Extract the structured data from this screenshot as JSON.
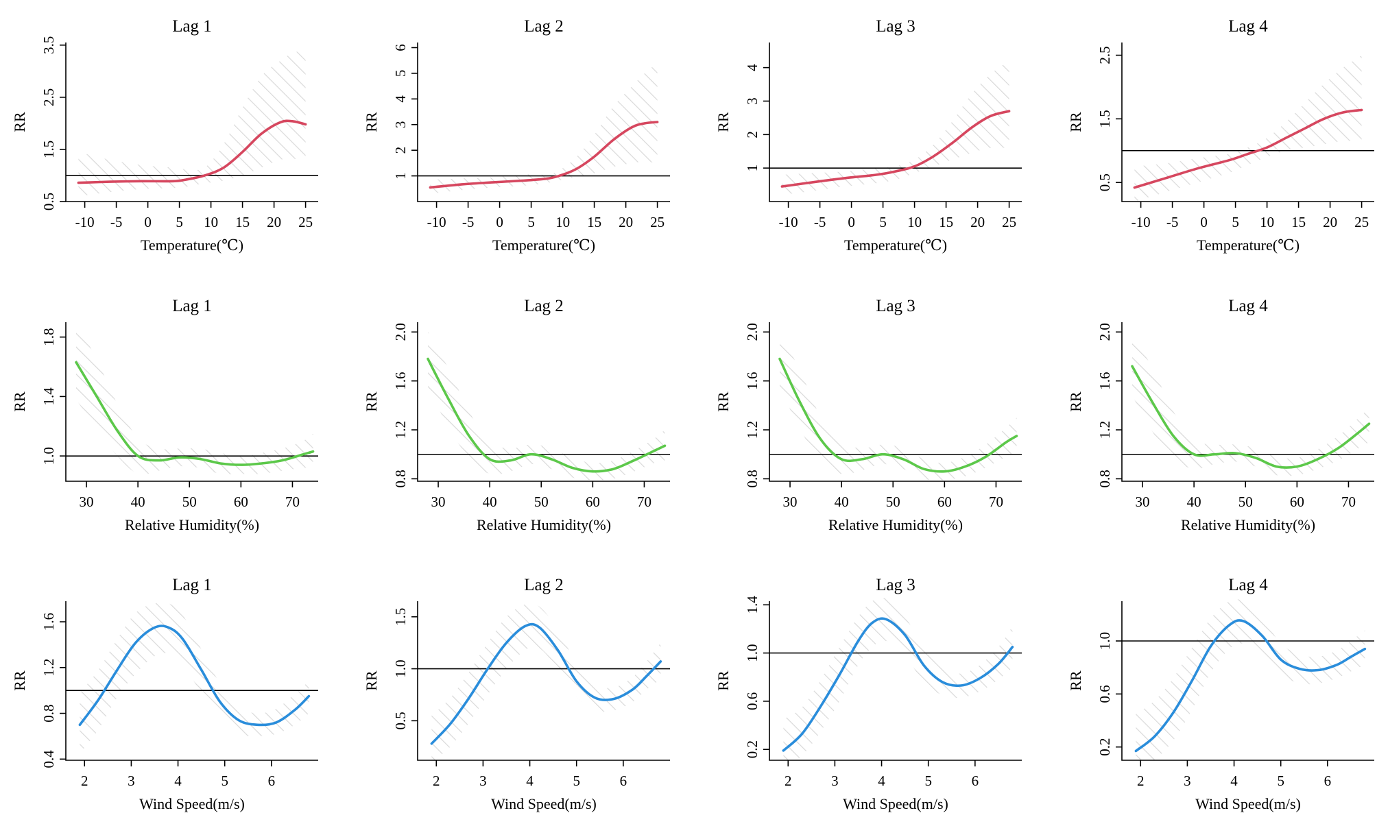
{
  "figure_type": "grid of 12 exposure-response line plots (3 rows x 4 columns)",
  "colors": {
    "temperature": "#d6475f",
    "humidity": "#5cc84a",
    "wind": "#2a8ddb",
    "ci_hatch": "#d9d9d9",
    "axis": "#000000"
  },
  "chart_data": [
    {
      "type": "line",
      "title": "Lag 1",
      "xlabel": "Temperature(℃)",
      "ylabel": "RR",
      "xlim": [
        -13,
        27
      ],
      "ylim": [
        0.5,
        3.55
      ],
      "xticks": [
        -10,
        -5,
        0,
        5,
        10,
        15,
        20,
        25
      ],
      "yticks": [
        0.5,
        1.5,
        2.5,
        3.5
      ],
      "reference_y": 1,
      "color": "#d6475f",
      "x": [
        -11,
        -6,
        -1,
        4,
        6,
        9,
        12,
        15,
        18,
        21,
        23,
        25
      ],
      "y": [
        0.86,
        0.88,
        0.89,
        0.89,
        0.92,
        1.0,
        1.15,
        1.45,
        1.8,
        2.02,
        2.04,
        1.98
      ],
      "ci_upper": [
        1.45,
        1.3,
        1.2,
        1.15,
        1.12,
        1.15,
        1.6,
        2.3,
        2.9,
        3.2,
        3.35,
        3.4
      ],
      "ci_lower": [
        0.6,
        0.68,
        0.74,
        0.76,
        0.78,
        0.85,
        0.9,
        1.0,
        1.15,
        1.3,
        1.32,
        1.3
      ]
    },
    {
      "type": "line",
      "title": "Lag 2",
      "xlabel": "Temperature(℃)",
      "ylabel": "RR",
      "xlim": [
        -13,
        27
      ],
      "ylim": [
        0,
        6.2
      ],
      "xticks": [
        -10,
        -5,
        0,
        5,
        10,
        15,
        20,
        25
      ],
      "yticks": [
        1,
        2,
        3,
        4,
        5,
        6
      ],
      "reference_y": 1,
      "color": "#d6475f",
      "x": [
        -11,
        -6,
        -1,
        4,
        7,
        9,
        12,
        15,
        18,
        21,
        23,
        25
      ],
      "y": [
        0.55,
        0.67,
        0.75,
        0.82,
        0.88,
        0.97,
        1.25,
        1.75,
        2.4,
        2.9,
        3.05,
        3.1
      ],
      "ci_upper": [
        0.85,
        0.9,
        0.95,
        1.05,
        1.05,
        1.15,
        1.7,
        2.6,
        3.7,
        4.5,
        5.0,
        5.4
      ],
      "ci_lower": [
        0.3,
        0.45,
        0.55,
        0.62,
        0.7,
        0.8,
        0.95,
        1.1,
        1.35,
        1.5,
        1.55,
        1.5
      ]
    },
    {
      "type": "line",
      "title": "Lag 3",
      "xlabel": "Temperature(℃)",
      "ylabel": "RR",
      "xlim": [
        -13,
        27
      ],
      "ylim": [
        0,
        4.75
      ],
      "xticks": [
        -10,
        -5,
        0,
        5,
        10,
        15,
        20,
        25
      ],
      "yticks": [
        1,
        2,
        3,
        4
      ],
      "reference_y": 1,
      "color": "#d6475f",
      "x": [
        -11,
        -6,
        -1,
        4,
        7,
        10,
        13,
        16,
        19,
        22,
        25
      ],
      "y": [
        0.45,
        0.58,
        0.7,
        0.8,
        0.9,
        1.05,
        1.35,
        1.75,
        2.2,
        2.55,
        2.7
      ],
      "ci_upper": [
        0.8,
        0.85,
        0.9,
        1.0,
        1.05,
        1.25,
        1.7,
        2.4,
        3.2,
        3.8,
        4.2
      ],
      "ci_lower": [
        0.2,
        0.32,
        0.45,
        0.55,
        0.65,
        0.85,
        1.05,
        1.25,
        1.45,
        1.6,
        1.6
      ]
    },
    {
      "type": "line",
      "title": "Lag 4",
      "xlabel": "Temperature(℃)",
      "ylabel": "RR",
      "xlim": [
        -13,
        27
      ],
      "ylim": [
        0.2,
        2.7
      ],
      "xticks": [
        -10,
        -5,
        0,
        5,
        10,
        15,
        20,
        25
      ],
      "yticks": [
        0.5,
        1.5,
        2.5
      ],
      "reference_y": 1,
      "color": "#d6475f",
      "x": [
        -11,
        -6,
        -1,
        4,
        7,
        10,
        13,
        16,
        19,
        22,
        25
      ],
      "y": [
        0.42,
        0.57,
        0.72,
        0.85,
        0.95,
        1.05,
        1.2,
        1.35,
        1.5,
        1.6,
        1.64
      ],
      "ci_upper": [
        0.75,
        0.8,
        0.88,
        0.95,
        1.05,
        1.2,
        1.45,
        1.75,
        2.05,
        2.3,
        2.5
      ],
      "ci_lower": [
        0.2,
        0.35,
        0.5,
        0.65,
        0.78,
        0.9,
        1.0,
        1.05,
        1.1,
        1.15,
        1.15
      ]
    },
    {
      "type": "line",
      "title": "Lag 1",
      "xlabel": "Relative Humidity(%)",
      "ylabel": "RR",
      "xlim": [
        26,
        75
      ],
      "ylim": [
        0.83,
        1.9
      ],
      "xticks": [
        30,
        40,
        50,
        60,
        70
      ],
      "yticks": [
        1.0,
        1.4,
        1.8
      ],
      "reference_y": 1,
      "color": "#5cc84a",
      "x": [
        28,
        32,
        36,
        40,
        44,
        48,
        52,
        56,
        60,
        64,
        68,
        72,
        74
      ],
      "y": [
        1.63,
        1.4,
        1.17,
        1.0,
        0.97,
        0.99,
        0.98,
        0.95,
        0.94,
        0.95,
        0.97,
        1.01,
        1.03
      ],
      "ci_upper": [
        1.9,
        1.65,
        1.35,
        1.12,
        1.05,
        1.05,
        1.05,
        1.02,
        1.0,
        1.02,
        1.05,
        1.1,
        1.15
      ],
      "ci_lower": [
        1.38,
        1.18,
        1.0,
        0.88,
        0.9,
        0.93,
        0.92,
        0.88,
        0.88,
        0.88,
        0.9,
        0.92,
        0.92
      ]
    },
    {
      "type": "line",
      "title": "Lag 2",
      "xlabel": "Relative Humidity(%)",
      "ylabel": "RR",
      "xlim": [
        26,
        75
      ],
      "ylim": [
        0.78,
        2.08
      ],
      "xticks": [
        30,
        40,
        50,
        60,
        70
      ],
      "yticks": [
        0.8,
        1.2,
        1.6,
        2.0
      ],
      "reference_y": 1,
      "color": "#5cc84a",
      "x": [
        28,
        32,
        36,
        40,
        44,
        48,
        52,
        56,
        60,
        64,
        68,
        72,
        74
      ],
      "y": [
        1.78,
        1.45,
        1.15,
        0.96,
        0.95,
        1.0,
        0.96,
        0.89,
        0.86,
        0.88,
        0.95,
        1.03,
        1.07
      ],
      "ci_upper": [
        2.0,
        1.7,
        1.35,
        1.1,
        1.05,
        1.08,
        1.05,
        0.97,
        0.93,
        0.95,
        1.03,
        1.13,
        1.2
      ],
      "ci_lower": [
        1.55,
        1.22,
        0.97,
        0.84,
        0.86,
        0.92,
        0.88,
        0.81,
        0.79,
        0.8,
        0.86,
        0.93,
        0.95
      ]
    },
    {
      "type": "line",
      "title": "Lag 3",
      "xlabel": "Relative Humidity(%)",
      "ylabel": "RR",
      "xlim": [
        26,
        75
      ],
      "ylim": [
        0.78,
        2.08
      ],
      "xticks": [
        30,
        40,
        50,
        60,
        70
      ],
      "yticks": [
        0.8,
        1.2,
        1.6,
        2.0
      ],
      "reference_y": 1,
      "color": "#5cc84a",
      "x": [
        28,
        32,
        36,
        40,
        44,
        48,
        52,
        56,
        60,
        64,
        68,
        72,
        74
      ],
      "y": [
        1.78,
        1.42,
        1.12,
        0.96,
        0.96,
        1.0,
        0.96,
        0.88,
        0.86,
        0.9,
        0.98,
        1.1,
        1.15
      ],
      "ci_upper": [
        2.0,
        1.68,
        1.3,
        1.1,
        1.05,
        1.08,
        1.05,
        0.96,
        0.93,
        0.98,
        1.08,
        1.22,
        1.3
      ],
      "ci_lower": [
        1.55,
        1.2,
        0.95,
        0.84,
        0.87,
        0.92,
        0.88,
        0.8,
        0.79,
        0.82,
        0.89,
        0.98,
        1.0
      ]
    },
    {
      "type": "line",
      "title": "Lag 4",
      "xlabel": "Relative Humidity(%)",
      "ylabel": "RR",
      "xlim": [
        26,
        75
      ],
      "ylim": [
        0.78,
        2.08
      ],
      "xticks": [
        30,
        40,
        50,
        60,
        70
      ],
      "yticks": [
        0.8,
        1.2,
        1.6,
        2.0
      ],
      "reference_y": 1,
      "color": "#5cc84a",
      "x": [
        28,
        32,
        36,
        40,
        44,
        48,
        52,
        56,
        60,
        64,
        68,
        72,
        74
      ],
      "y": [
        1.72,
        1.42,
        1.15,
        1.0,
        1.0,
        1.01,
        0.97,
        0.9,
        0.9,
        0.96,
        1.05,
        1.18,
        1.25
      ],
      "ci_upper": [
        1.98,
        1.7,
        1.35,
        1.12,
        1.08,
        1.08,
        1.05,
        0.98,
        0.97,
        1.04,
        1.15,
        1.3,
        1.38
      ],
      "ci_lower": [
        1.48,
        1.18,
        0.97,
        0.88,
        0.92,
        0.94,
        0.9,
        0.83,
        0.83,
        0.88,
        0.95,
        1.05,
        1.1
      ]
    },
    {
      "type": "line",
      "title": "Lag 1",
      "xlabel": "Wind Speed(m/s)",
      "ylabel": "RR",
      "xlim": [
        1.6,
        7.0
      ],
      "ylim": [
        0.39,
        1.78
      ],
      "xticks": [
        2,
        3,
        4,
        5,
        6
      ],
      "yticks": [
        0.4,
        0.8,
        1.2,
        1.6
      ],
      "reference_y": 1,
      "color": "#2a8ddb",
      "x": [
        1.9,
        2.3,
        2.7,
        3.1,
        3.5,
        3.8,
        4.1,
        4.5,
        4.9,
        5.3,
        5.7,
        6.1,
        6.5,
        6.8
      ],
      "y": [
        0.7,
        0.92,
        1.18,
        1.42,
        1.55,
        1.55,
        1.45,
        1.18,
        0.9,
        0.74,
        0.7,
        0.72,
        0.83,
        0.95
      ],
      "ci_upper": [
        0.98,
        1.18,
        1.45,
        1.68,
        1.76,
        1.76,
        1.66,
        1.36,
        1.06,
        0.86,
        0.8,
        0.84,
        0.97,
        1.08
      ],
      "ci_lower": [
        0.45,
        0.66,
        0.94,
        1.15,
        1.3,
        1.32,
        1.22,
        0.98,
        0.74,
        0.62,
        0.6,
        0.62,
        0.7,
        0.8
      ]
    },
    {
      "type": "line",
      "title": "Lag 2",
      "xlabel": "Wind Speed(m/s)",
      "ylabel": "RR",
      "xlim": [
        1.6,
        7.0
      ],
      "ylim": [
        0.12,
        1.65
      ],
      "xticks": [
        2,
        3,
        4,
        5,
        6
      ],
      "yticks": [
        0.5,
        1.0,
        1.5
      ],
      "reference_y": 1,
      "color": "#2a8ddb",
      "x": [
        1.9,
        2.3,
        2.7,
        3.1,
        3.5,
        3.9,
        4.2,
        4.6,
        5.0,
        5.4,
        5.8,
        6.2,
        6.5,
        6.8
      ],
      "y": [
        0.28,
        0.47,
        0.72,
        1.0,
        1.25,
        1.41,
        1.4,
        1.18,
        0.88,
        0.72,
        0.71,
        0.8,
        0.93,
        1.07
      ],
      "ci_upper": [
        0.55,
        0.72,
        0.97,
        1.25,
        1.5,
        1.62,
        1.6,
        1.38,
        1.05,
        0.85,
        0.82,
        0.92,
        1.07,
        1.25
      ],
      "ci_lower": [
        0.1,
        0.25,
        0.48,
        0.75,
        1.0,
        1.18,
        1.2,
        1.0,
        0.73,
        0.6,
        0.6,
        0.68,
        0.8,
        0.9
      ]
    },
    {
      "type": "line",
      "title": "Lag 3",
      "xlabel": "Wind Speed(m/s)",
      "ylabel": "RR",
      "xlim": [
        1.6,
        7.0
      ],
      "ylim": [
        0.11,
        1.43
      ],
      "xticks": [
        2,
        3,
        4,
        5,
        6
      ],
      "yticks": [
        0.2,
        0.6,
        1.0,
        1.4
      ],
      "reference_y": 1,
      "color": "#2a8ddb",
      "x": [
        1.9,
        2.3,
        2.7,
        3.1,
        3.5,
        3.8,
        4.1,
        4.5,
        4.9,
        5.3,
        5.7,
        6.1,
        6.5,
        6.8
      ],
      "y": [
        0.19,
        0.33,
        0.56,
        0.82,
        1.1,
        1.25,
        1.28,
        1.15,
        0.9,
        0.76,
        0.73,
        0.79,
        0.91,
        1.05
      ],
      "ci_upper": [
        0.45,
        0.55,
        0.78,
        1.05,
        1.3,
        1.43,
        1.45,
        1.3,
        1.05,
        0.87,
        0.83,
        0.9,
        1.05,
        1.22
      ],
      "ci_lower": [
        0.05,
        0.15,
        0.35,
        0.6,
        0.9,
        1.05,
        1.1,
        0.98,
        0.76,
        0.65,
        0.63,
        0.68,
        0.78,
        0.88
      ]
    },
    {
      "type": "line",
      "title": "Lag 4",
      "xlabel": "Wind Speed(m/s)",
      "ylabel": "RR",
      "xlim": [
        1.6,
        7.0
      ],
      "ylim": [
        0.1,
        1.3
      ],
      "xticks": [
        2,
        3,
        4,
        5,
        6
      ],
      "yticks": [
        0.2,
        0.6,
        1.0
      ],
      "reference_y": 1,
      "color": "#2a8ddb",
      "x": [
        1.9,
        2.3,
        2.7,
        3.1,
        3.5,
        3.9,
        4.2,
        4.6,
        5.0,
        5.4,
        5.8,
        6.2,
        6.5,
        6.8
      ],
      "y": [
        0.17,
        0.28,
        0.46,
        0.7,
        0.96,
        1.12,
        1.15,
        1.04,
        0.86,
        0.79,
        0.78,
        0.82,
        0.88,
        0.94
      ],
      "ci_upper": [
        0.45,
        0.55,
        0.72,
        0.95,
        1.17,
        1.3,
        1.3,
        1.18,
        0.98,
        0.9,
        0.88,
        0.93,
        1.0,
        1.08
      ],
      "ci_lower": [
        0.0,
        0.1,
        0.25,
        0.48,
        0.76,
        0.94,
        0.98,
        0.9,
        0.75,
        0.68,
        0.68,
        0.72,
        0.77,
        0.82
      ]
    }
  ]
}
